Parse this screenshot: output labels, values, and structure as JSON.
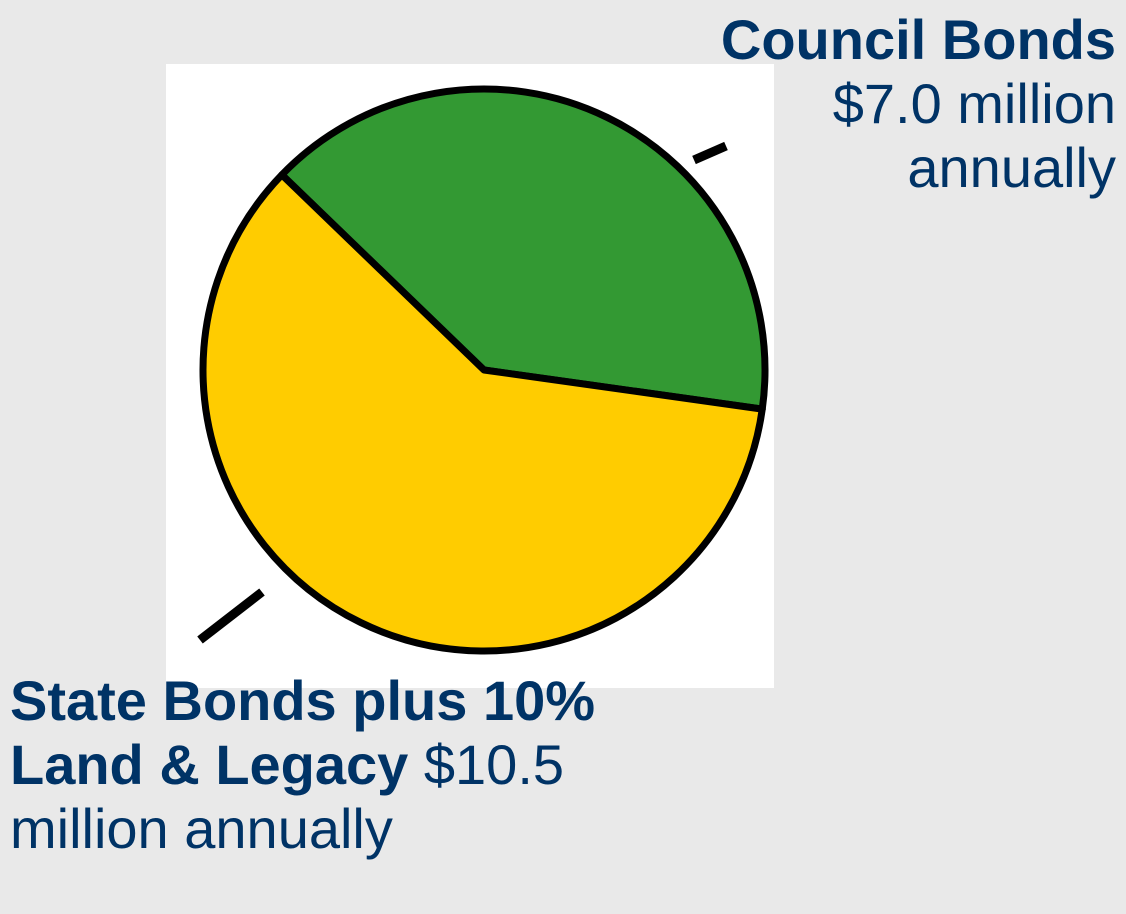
{
  "chart_data": {
    "type": "pie",
    "title": "",
    "start_angle_deg": -136,
    "slices": [
      {
        "label": "Council Bonds",
        "value": 7.0,
        "value_text": "$7.0 million annually",
        "color": "#339933"
      },
      {
        "label": "State Bonds plus 10% Land & Legacy",
        "value": 10.5,
        "value_text": "$10.5 million annually",
        "color": "#ffcc00"
      }
    ]
  },
  "labels": {
    "council": {
      "name": "Council Bonds",
      "amount_line1": "$7.0 million",
      "amount_line2": "annually"
    },
    "state": {
      "name_line1": "State Bonds plus 10%",
      "name_line2": "Land & Legacy",
      "amount": " $10.5",
      "amount_line3": "million annually"
    }
  },
  "colors": {
    "background": "#e9e9e9",
    "panel": "#ffffff",
    "text": "#003366",
    "outline": "#000000"
  }
}
